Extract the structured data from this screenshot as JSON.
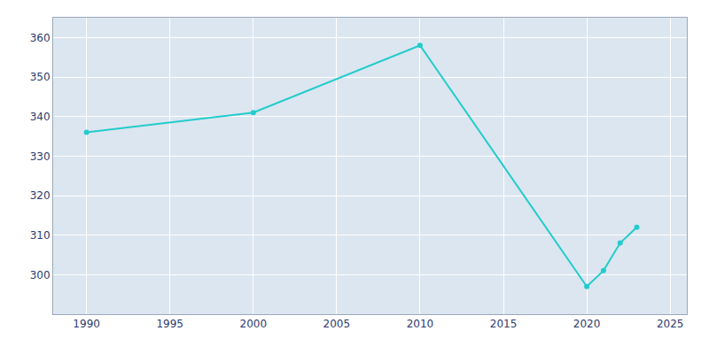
{
  "chart_data": {
    "type": "line",
    "x": [
      1990,
      2000,
      2010,
      2020,
      2021,
      2022,
      2023
    ],
    "values": [
      336,
      341,
      358,
      297,
      301,
      308,
      312
    ],
    "color": "#22CCCC",
    "marker": "circle",
    "xlim": [
      1988,
      2026
    ],
    "ylim": [
      290,
      365
    ],
    "xticks": [
      1990,
      1995,
      2000,
      2005,
      2010,
      2015,
      2020,
      2025
    ],
    "yticks": [
      300,
      310,
      320,
      330,
      340,
      350,
      360
    ],
    "grid": true
  }
}
